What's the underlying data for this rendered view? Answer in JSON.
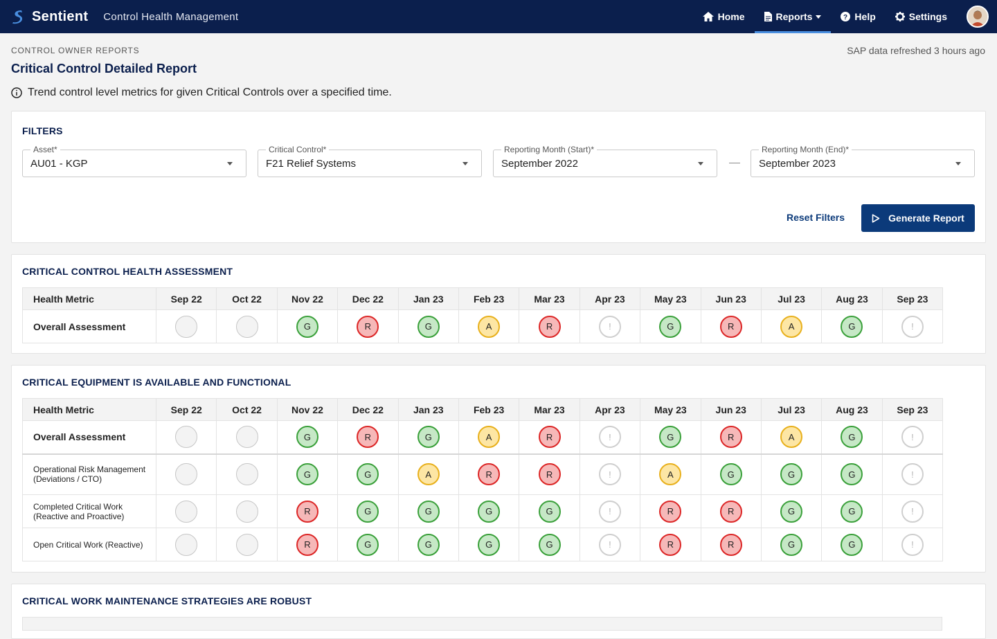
{
  "header": {
    "brand": "Sentient",
    "app_name": "Control Health Management",
    "nav": {
      "home": "Home",
      "reports": "Reports",
      "help": "Help",
      "settings": "Settings"
    }
  },
  "page": {
    "eyebrow": "CONTROL OWNER REPORTS",
    "refresh": "SAP data refreshed 3 hours ago",
    "title": "Critical Control Detailed Report",
    "info": "Trend control level metrics for given Critical Controls over a specified time."
  },
  "filters": {
    "title": "FILTERS",
    "asset": {
      "label": "Asset*",
      "value": "AU01 - KGP"
    },
    "control": {
      "label": "Critical Control*",
      "value": "F21 Relief Systems"
    },
    "start": {
      "label": "Reporting Month (Start)*",
      "value": "September 2022"
    },
    "end": {
      "label": "Reporting Month (End)*",
      "value": "September 2023"
    },
    "reset_label": "Reset Filters",
    "generate_label": "Generate Report"
  },
  "months": [
    "Sep 22",
    "Oct 22",
    "Nov 22",
    "Dec 22",
    "Jan 23",
    "Feb 23",
    "Mar 23",
    "Apr 23",
    "May 23",
    "Jun 23",
    "Jul 23",
    "Aug 23",
    "Sep 23"
  ],
  "metric_header": "Health Metric",
  "sections": [
    {
      "title": "CRITICAL CONTROL HEALTH ASSESSMENT",
      "rows": [
        {
          "label": "Overall Assessment",
          "statuses": [
            "",
            "",
            "G",
            "R",
            "G",
            "A",
            "R",
            "!",
            "G",
            "R",
            "A",
            "G",
            "!"
          ]
        }
      ]
    },
    {
      "title": "CRITICAL EQUIPMENT IS AVAILABLE AND FUNCTIONAL",
      "rows": [
        {
          "label": "Overall Assessment",
          "statuses": [
            "",
            "",
            "G",
            "R",
            "G",
            "A",
            "R",
            "!",
            "G",
            "R",
            "A",
            "G",
            "!"
          ]
        },
        {
          "label": "Operational Risk Management (Deviations / CTO)",
          "statuses": [
            "",
            "",
            "G",
            "G",
            "A",
            "R",
            "R",
            "!",
            "A",
            "G",
            "G",
            "G",
            "!"
          ]
        },
        {
          "label": "Completed Critical Work (Reactive and Proactive)",
          "statuses": [
            "",
            "",
            "R",
            "G",
            "G",
            "G",
            "G",
            "!",
            "R",
            "R",
            "G",
            "G",
            "!"
          ]
        },
        {
          "label": "Open Critical Work (Reactive)",
          "statuses": [
            "",
            "",
            "R",
            "G",
            "G",
            "G",
            "G",
            "!",
            "R",
            "R",
            "G",
            "G",
            "!"
          ]
        }
      ]
    },
    {
      "title": "CRITICAL WORK MAINTENANCE STRATEGIES ARE ROBUST"
    }
  ]
}
